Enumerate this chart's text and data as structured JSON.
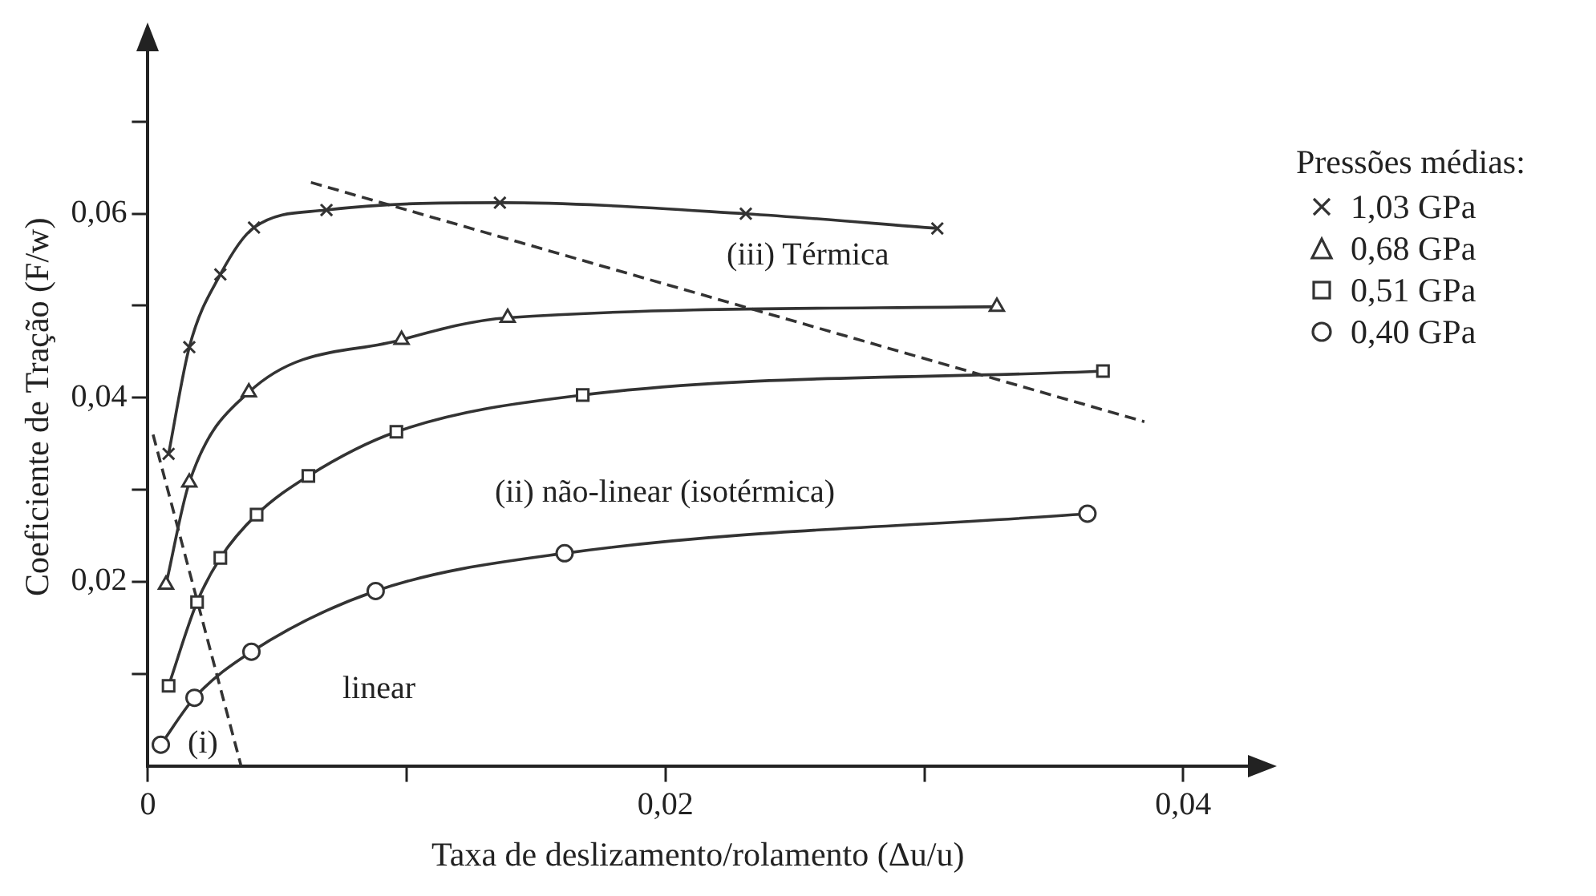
{
  "chart_data": {
    "type": "line",
    "xlabel": "Taxa de deslizamento/rolamento (Δu/u)",
    "ylabel": "Coeficiente de Tração (F/w)",
    "legend_title": "Pressões médias:",
    "legend": "right",
    "grid": false,
    "line_style": "solid",
    "xlim": [
      0,
      0.0425
    ],
    "ylim": [
      0,
      0.078
    ],
    "xticks": [
      {
        "value": 0,
        "label": "0"
      },
      {
        "value": 0.01,
        "label": null
      },
      {
        "value": 0.02,
        "label": "0,02"
      },
      {
        "value": 0.03,
        "label": null
      },
      {
        "value": 0.04,
        "label": "0,04"
      }
    ],
    "yticks": [
      {
        "value": 0.01,
        "label": null
      },
      {
        "value": 0.02,
        "label": "0,02"
      },
      {
        "value": 0.03,
        "label": null
      },
      {
        "value": 0.04,
        "label": "0,04"
      },
      {
        "value": 0.05,
        "label": null
      },
      {
        "value": 0.06,
        "label": "0,06"
      },
      {
        "value": 0.07,
        "label": null
      }
    ],
    "series": [
      {
        "name": "1,03 GPa",
        "color": "#333333",
        "marker": "cross",
        "x": [
          0.0008,
          0.0016,
          0.0028,
          0.0041,
          0.0069,
          0.0136,
          0.0231,
          0.0305
        ],
        "values": [
          0.0339,
          0.0455,
          0.0534,
          0.0585,
          0.0604,
          0.0612,
          0.06,
          0.0584
        ]
      },
      {
        "name": "0,68 GPa",
        "color": "#333333",
        "marker": "triangle",
        "x": [
          0.0007,
          0.0016,
          0.0039,
          0.0098,
          0.0139,
          0.0328
        ],
        "values": [
          0.0197,
          0.0308,
          0.0406,
          0.0463,
          0.0487,
          0.0499
        ]
      },
      {
        "name": "0,51 GPa",
        "color": "#333333",
        "marker": "square",
        "x": [
          0.0008,
          0.0019,
          0.0028,
          0.0042,
          0.0062,
          0.0096,
          0.0168,
          0.0369
        ],
        "values": [
          0.0087,
          0.0178,
          0.0226,
          0.0273,
          0.0315,
          0.0363,
          0.0403,
          0.0429
        ]
      },
      {
        "name": "0,40 GPa",
        "color": "#333333",
        "marker": "circle",
        "x": [
          0.0005,
          0.0018,
          0.004,
          0.0088,
          0.0161,
          0.0363
        ],
        "values": [
          0.0023,
          0.0074,
          0.0124,
          0.019,
          0.0231,
          0.0274
        ]
      },
      {
        "color": "#333333",
        "marker": "none",
        "line_style": "dashed",
        "x": [
          0.0063,
          0.0385
        ],
        "values": [
          0.0634,
          0.0374
        ]
      },
      {
        "color": "#333333",
        "marker": "none",
        "line_style": "dashed",
        "x": [
          0.0002,
          0.0036
        ],
        "values": [
          0.036,
          0
        ]
      }
    ],
    "annotations": [
      "(iii) Térmica",
      "(ii) não-linear (isotérmica)",
      "linear",
      "(i)"
    ]
  }
}
